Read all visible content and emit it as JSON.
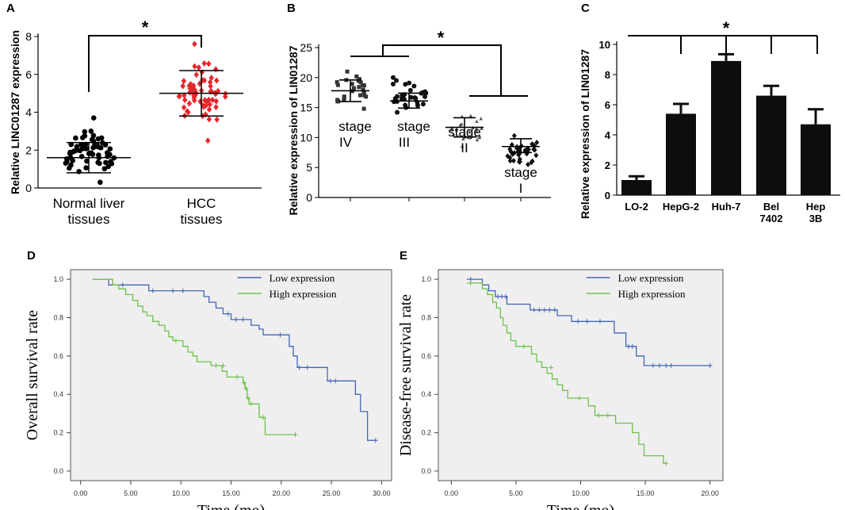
{
  "chart_data": [
    {
      "panel": "A",
      "type": "scatter",
      "ylabel": "Relative LINC01287 expression",
      "ylim": [
        0,
        8
      ],
      "yticks": [
        0,
        2,
        4,
        6,
        8
      ],
      "categories": [
        "Normal liver\ntissues",
        "HCC\ntissues"
      ],
      "groups": [
        {
          "mean": 1.6,
          "sd_low": 0.8,
          "sd_high": 2.4,
          "min": 0.3,
          "max": 3.7,
          "n": 64,
          "color": "#000000",
          "marker": "circle"
        },
        {
          "mean": 5.0,
          "sd_low": 3.8,
          "sd_high": 6.2,
          "min": 2.5,
          "max": 7.6,
          "n": 64,
          "color": "#e8262b",
          "marker": "diamond"
        }
      ],
      "significance": "*"
    },
    {
      "panel": "B",
      "type": "scatter",
      "ylabel": "Relative expression of LIN01287",
      "ylim": [
        0,
        25
      ],
      "yticks": [
        0,
        5,
        10,
        15,
        20,
        25
      ],
      "categories": [
        "stage\nIV",
        "stage\nIII",
        "stage\nII",
        "stage\nI"
      ],
      "groups": [
        {
          "mean": 17.8,
          "sd_low": 16.0,
          "sd_high": 19.6,
          "min": 14.8,
          "max": 21.0,
          "n": 26,
          "color": "#333333",
          "marker": "square"
        },
        {
          "mean": 16.1,
          "sd_low": 14.9,
          "sd_high": 17.4,
          "min": 14.2,
          "max": 20.0,
          "n": 30,
          "color": "#111111",
          "marker": "circle"
        },
        {
          "mean": 11.7,
          "sd_low": 10.1,
          "sd_high": 13.3,
          "min": 8.5,
          "max": 13.6,
          "n": 22,
          "color": "#555555",
          "marker": "triangle"
        },
        {
          "mean": 8.5,
          "sd_low": 7.5,
          "sd_high": 9.8,
          "min": 5.5,
          "max": 10.3,
          "n": 36,
          "color": "#111111",
          "marker": "diamond"
        }
      ],
      "significance": "*"
    },
    {
      "panel": "C",
      "type": "bar",
      "ylabel": "Relative expression of LIN01287",
      "ylim": [
        0,
        10
      ],
      "yticks": [
        0,
        2,
        4,
        6,
        8,
        10
      ],
      "categories": [
        "LO-2",
        "HepG-2",
        "Huh-7",
        "Bel\n7402",
        "Hep\n3B"
      ],
      "values": [
        1.0,
        5.4,
        8.9,
        6.6,
        4.7
      ],
      "errors": [
        0.25,
        0.65,
        0.45,
        0.65,
        1.0
      ],
      "significance": "*"
    },
    {
      "panel": "D",
      "type": "line",
      "xlabel": "Time (mo)",
      "ylabel": "Overall survival rate",
      "xlim": [
        -1,
        31
      ],
      "ylim": [
        -0.05,
        1.05
      ],
      "xticks": [
        "0.00",
        "5.00",
        "10.00",
        "15.00",
        "20.00",
        "25.00",
        "30.00"
      ],
      "yticks": [
        "0.0",
        "0.2",
        "0.4",
        "0.6",
        "0.8",
        "1.0"
      ],
      "legend": [
        "Low expression",
        "High expression"
      ],
      "series": [
        {
          "name": "Low expression",
          "color": "#4466b8",
          "points": [
            [
              1.2,
              1.0
            ],
            [
              2.8,
              1.0
            ],
            [
              2.8,
              0.97
            ],
            [
              6.8,
              0.97
            ],
            [
              6.8,
              0.94
            ],
            [
              12.3,
              0.94
            ],
            [
              12.3,
              0.91
            ],
            [
              12.8,
              0.91
            ],
            [
              12.8,
              0.88
            ],
            [
              13.5,
              0.88
            ],
            [
              13.5,
              0.85
            ],
            [
              14.2,
              0.85
            ],
            [
              14.2,
              0.82
            ],
            [
              15,
              0.82
            ],
            [
              15,
              0.79
            ],
            [
              17,
              0.79
            ],
            [
              17,
              0.76
            ],
            [
              17.8,
              0.76
            ],
            [
              17.8,
              0.74
            ],
            [
              18.2,
              0.74
            ],
            [
              18.2,
              0.71
            ],
            [
              20.8,
              0.71
            ],
            [
              20.8,
              0.65
            ],
            [
              21.2,
              0.65
            ],
            [
              21.2,
              0.6
            ],
            [
              21.6,
              0.6
            ],
            [
              21.6,
              0.54
            ],
            [
              24.6,
              0.54
            ],
            [
              24.6,
              0.47
            ],
            [
              27.4,
              0.47
            ],
            [
              27.4,
              0.4
            ],
            [
              27.9,
              0.4
            ],
            [
              27.9,
              0.31
            ],
            [
              28.6,
              0.31
            ],
            [
              28.6,
              0.16
            ],
            [
              29.4,
              0.16
            ]
          ],
          "censor": [
            [
              4.2,
              0.97
            ],
            [
              7.2,
              0.94
            ],
            [
              9.2,
              0.94
            ],
            [
              10.2,
              0.94
            ],
            [
              14.7,
              0.82
            ],
            [
              15.5,
              0.79
            ],
            [
              16.2,
              0.79
            ],
            [
              19.9,
              0.71
            ],
            [
              21.8,
              0.54
            ],
            [
              22.6,
              0.54
            ],
            [
              24.9,
              0.47
            ],
            [
              25.4,
              0.47
            ],
            [
              29.4,
              0.16
            ]
          ]
        },
        {
          "name": "High expression",
          "color": "#6cc24a",
          "points": [
            [
              1.2,
              1.0
            ],
            [
              3.2,
              1.0
            ],
            [
              3.2,
              0.97
            ],
            [
              3.8,
              0.97
            ],
            [
              3.8,
              0.95
            ],
            [
              4.5,
              0.95
            ],
            [
              4.5,
              0.92
            ],
            [
              5.2,
              0.92
            ],
            [
              5.2,
              0.89
            ],
            [
              5.7,
              0.89
            ],
            [
              5.7,
              0.86
            ],
            [
              6.2,
              0.86
            ],
            [
              6.2,
              0.83
            ],
            [
              6.6,
              0.83
            ],
            [
              6.6,
              0.81
            ],
            [
              7.2,
              0.81
            ],
            [
              7.2,
              0.78
            ],
            [
              7.8,
              0.78
            ],
            [
              7.8,
              0.76
            ],
            [
              8.4,
              0.76
            ],
            [
              8.4,
              0.73
            ],
            [
              8.8,
              0.73
            ],
            [
              8.8,
              0.7
            ],
            [
              9.2,
              0.7
            ],
            [
              9.2,
              0.68
            ],
            [
              10.2,
              0.68
            ],
            [
              10.2,
              0.65
            ],
            [
              10.7,
              0.65
            ],
            [
              10.7,
              0.62
            ],
            [
              11.2,
              0.62
            ],
            [
              11.2,
              0.6
            ],
            [
              11.6,
              0.6
            ],
            [
              11.6,
              0.57
            ],
            [
              13.0,
              0.57
            ],
            [
              13.0,
              0.55
            ],
            [
              14.1,
              0.55
            ],
            [
              14.1,
              0.52
            ],
            [
              14.6,
              0.52
            ],
            [
              14.6,
              0.49
            ],
            [
              16.2,
              0.49
            ],
            [
              16.2,
              0.46
            ],
            [
              16.4,
              0.46
            ],
            [
              16.4,
              0.43
            ],
            [
              16.6,
              0.43
            ],
            [
              16.6,
              0.38
            ],
            [
              16.8,
              0.38
            ],
            [
              16.8,
              0.35
            ],
            [
              17.8,
              0.35
            ],
            [
              17.8,
              0.28
            ],
            [
              18.4,
              0.28
            ],
            [
              18.4,
              0.19
            ],
            [
              21.4,
              0.19
            ]
          ],
          "censor": [
            [
              9.5,
              0.68
            ],
            [
              13.5,
              0.55
            ],
            [
              14.2,
              0.55
            ],
            [
              15.6,
              0.49
            ],
            [
              16.3,
              0.46
            ],
            [
              16.5,
              0.43
            ],
            [
              16.7,
              0.38
            ],
            [
              17.0,
              0.35
            ],
            [
              18.2,
              0.28
            ],
            [
              21.4,
              0.19
            ]
          ]
        }
      ]
    },
    {
      "panel": "E",
      "type": "line",
      "xlabel": "Time (mo)",
      "ylabel": "Disease-free survival rate",
      "xlim": [
        -1,
        21
      ],
      "ylim": [
        -0.05,
        1.05
      ],
      "xticks": [
        "0.00",
        "5.00",
        "10.00",
        "15.00",
        "20.00"
      ],
      "yticks": [
        "0.0",
        "0.2",
        "0.4",
        "0.6",
        "0.8",
        "1.0"
      ],
      "legend": [
        "Low expression",
        "High expression"
      ],
      "series": [
        {
          "name": "Low expression",
          "color": "#4466b8",
          "points": [
            [
              1.2,
              1.0
            ],
            [
              2.4,
              1.0
            ],
            [
              2.4,
              0.97
            ],
            [
              2.9,
              0.97
            ],
            [
              2.9,
              0.94
            ],
            [
              3.4,
              0.94
            ],
            [
              3.4,
              0.91
            ],
            [
              4.3,
              0.91
            ],
            [
              4.3,
              0.87
            ],
            [
              6.1,
              0.87
            ],
            [
              6.1,
              0.84
            ],
            [
              8.2,
              0.84
            ],
            [
              8.2,
              0.81
            ],
            [
              9.3,
              0.81
            ],
            [
              9.3,
              0.78
            ],
            [
              12.6,
              0.78
            ],
            [
              12.6,
              0.72
            ],
            [
              13.5,
              0.72
            ],
            [
              13.5,
              0.65
            ],
            [
              14.3,
              0.65
            ],
            [
              14.3,
              0.6
            ],
            [
              14.9,
              0.6
            ],
            [
              14.9,
              0.55
            ],
            [
              20.0,
              0.55
            ]
          ],
          "censor": [
            [
              1.5,
              1.0
            ],
            [
              3.6,
              0.91
            ],
            [
              3.9,
              0.91
            ],
            [
              4.2,
              0.91
            ],
            [
              6.4,
              0.84
            ],
            [
              6.8,
              0.84
            ],
            [
              7.2,
              0.84
            ],
            [
              7.6,
              0.84
            ],
            [
              8.0,
              0.84
            ],
            [
              9.8,
              0.78
            ],
            [
              10.5,
              0.78
            ],
            [
              11.5,
              0.78
            ],
            [
              13.7,
              0.65
            ],
            [
              14.0,
              0.65
            ],
            [
              15.6,
              0.55
            ],
            [
              16.1,
              0.55
            ],
            [
              16.6,
              0.55
            ],
            [
              17.0,
              0.55
            ],
            [
              20.0,
              0.55
            ]
          ]
        },
        {
          "name": "High expression",
          "color": "#6cc24a",
          "points": [
            [
              1.2,
              0.98
            ],
            [
              2.4,
              0.98
            ],
            [
              2.4,
              0.95
            ],
            [
              2.8,
              0.95
            ],
            [
              2.8,
              0.92
            ],
            [
              3.2,
              0.92
            ],
            [
              3.2,
              0.88
            ],
            [
              3.5,
              0.88
            ],
            [
              3.5,
              0.85
            ],
            [
              3.8,
              0.85
            ],
            [
              3.8,
              0.8
            ],
            [
              4.0,
              0.8
            ],
            [
              4.0,
              0.76
            ],
            [
              4.3,
              0.76
            ],
            [
              4.3,
              0.72
            ],
            [
              4.6,
              0.72
            ],
            [
              4.6,
              0.68
            ],
            [
              5.0,
              0.68
            ],
            [
              5.0,
              0.65
            ],
            [
              6.2,
              0.65
            ],
            [
              6.2,
              0.61
            ],
            [
              6.6,
              0.61
            ],
            [
              6.6,
              0.57
            ],
            [
              7.0,
              0.57
            ],
            [
              7.0,
              0.54
            ],
            [
              7.4,
              0.54
            ],
            [
              7.4,
              0.51
            ],
            [
              7.8,
              0.51
            ],
            [
              7.8,
              0.48
            ],
            [
              8.2,
              0.48
            ],
            [
              8.2,
              0.45
            ],
            [
              8.6,
              0.45
            ],
            [
              8.6,
              0.42
            ],
            [
              9.0,
              0.42
            ],
            [
              9.0,
              0.38
            ],
            [
              10.6,
              0.38
            ],
            [
              10.6,
              0.34
            ],
            [
              11.1,
              0.34
            ],
            [
              11.1,
              0.29
            ],
            [
              12.7,
              0.29
            ],
            [
              12.7,
              0.25
            ],
            [
              14.0,
              0.25
            ],
            [
              14.0,
              0.2
            ],
            [
              14.5,
              0.2
            ],
            [
              14.5,
              0.14
            ],
            [
              14.9,
              0.14
            ],
            [
              14.9,
              0.08
            ],
            [
              16.4,
              0.08
            ],
            [
              16.4,
              0.04
            ],
            [
              16.6,
              0.04
            ]
          ],
          "censor": [
            [
              1.5,
              0.98
            ],
            [
              5.6,
              0.65
            ],
            [
              7.7,
              0.54
            ],
            [
              9.9,
              0.38
            ],
            [
              11.4,
              0.29
            ],
            [
              12.1,
              0.29
            ],
            [
              16.6,
              0.04
            ]
          ]
        }
      ]
    }
  ]
}
